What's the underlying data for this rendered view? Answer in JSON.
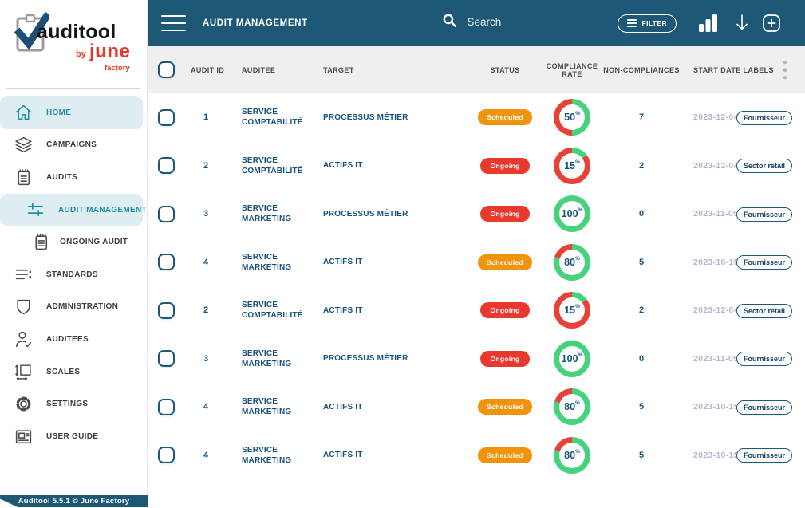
{
  "app": {
    "logo_brand": "auditool",
    "logo_by": "by",
    "logo_company": "june",
    "logo_company_sub": "factory",
    "footer": "Auditool 5.5.1 © June Factory"
  },
  "header": {
    "title": "AUDIT MANAGEMENT",
    "search_placeholder": "Search",
    "filter_label": "FILTER"
  },
  "sidebar": {
    "items": [
      {
        "label": "HOME",
        "icon": "home",
        "active": true,
        "indent": 0
      },
      {
        "label": "CAMPAIGNS",
        "icon": "layers",
        "active": false,
        "indent": 0
      },
      {
        "label": "AUDITS",
        "icon": "notepad",
        "active": false,
        "indent": 0
      },
      {
        "label": "AUDIT MANAGEMENT",
        "icon": "sliders",
        "active": true,
        "indent": 1
      },
      {
        "label": "ONGOING AUDIT",
        "icon": "notepad",
        "active": false,
        "indent": 2
      },
      {
        "label": "STANDARDS",
        "icon": "list",
        "active": false,
        "indent": 0
      },
      {
        "label": "ADMINISTRATION",
        "icon": "shield",
        "active": false,
        "indent": 0
      },
      {
        "label": "AUDITEES",
        "icon": "user-check",
        "active": false,
        "indent": 0
      },
      {
        "label": "SCALES",
        "icon": "scale",
        "active": false,
        "indent": 0
      },
      {
        "label": "SETTINGS",
        "icon": "gear",
        "active": false,
        "indent": 0
      },
      {
        "label": "USER GUIDE",
        "icon": "news",
        "active": false,
        "indent": 0
      }
    ]
  },
  "table": {
    "columns": [
      "AUDIT ID",
      "AUDITEE",
      "TARGET",
      "STATUS",
      "COMPLIANCE RATE",
      "NON-COMPLIANCES",
      "START DATE LABELS"
    ],
    "rows": [
      {
        "id": "1",
        "auditee": "SERVICE COMPTABILITÉ",
        "target": "PROCESSUS MÉTIER",
        "status": "Scheduled",
        "status_type": "scheduled",
        "compliance": 50,
        "non_compliances": "7",
        "start_date": "2023-12-04",
        "label": "Fournisseur"
      },
      {
        "id": "2",
        "auditee": "SERVICE COMPTABILITÉ",
        "target": "ACTIFS IT",
        "status": "Ongoing",
        "status_type": "ongoing",
        "compliance": 15,
        "non_compliances": "2",
        "start_date": "2023-12-04",
        "label": "Sector retail"
      },
      {
        "id": "3",
        "auditee": "SERVICE MARKETING",
        "target": "PROCESSUS MÉTIER",
        "status": "Ongoing",
        "status_type": "ongoing",
        "compliance": 100,
        "non_compliances": "0",
        "start_date": "2023-11-05",
        "label": "Fournisseur"
      },
      {
        "id": "4",
        "auditee": "SERVICE MARKETING",
        "target": "ACTIFS IT",
        "status": "Scheduled",
        "status_type": "scheduled",
        "compliance": 80,
        "non_compliances": "5",
        "start_date": "2023-10-15",
        "label": "Fournisseur"
      },
      {
        "id": "2",
        "auditee": "SERVICE COMPTABILITÉ",
        "target": "ACTIFS IT",
        "status": "Ongoing",
        "status_type": "ongoing",
        "compliance": 15,
        "non_compliances": "2",
        "start_date": "2023-12-04",
        "label": "Sector retail"
      },
      {
        "id": "3",
        "auditee": "SERVICE MARKETING",
        "target": "PROCESSUS MÉTIER",
        "status": "Ongoing",
        "status_type": "ongoing",
        "compliance": 100,
        "non_compliances": "0",
        "start_date": "2023-11-05",
        "label": "Fournisseur"
      },
      {
        "id": "4",
        "auditee": "SERVICE MARKETING",
        "target": "ACTIFS IT",
        "status": "Scheduled",
        "status_type": "scheduled",
        "compliance": 80,
        "non_compliances": "5",
        "start_date": "2023-10-15",
        "label": "Fournisseur"
      },
      {
        "id": "4",
        "auditee": "SERVICE MARKETING",
        "target": "ACTIFS IT",
        "status": "Scheduled",
        "status_type": "scheduled",
        "compliance": 80,
        "non_compliances": "5",
        "start_date": "2023-10-15",
        "label": "Fournisseur"
      }
    ]
  },
  "colors": {
    "topbar_bg": "#1d5876",
    "accent_teal": "#1d92a6",
    "active_bg": "#ddedf1",
    "navy": "#17517c",
    "scheduled_orange": "#f0930d",
    "ongoing_red": "#e9392e",
    "donut_green": "#47d37d",
    "donut_red": "#e84138",
    "date_lavender": "#b7b4d2",
    "brand_red": "#e8352b"
  }
}
